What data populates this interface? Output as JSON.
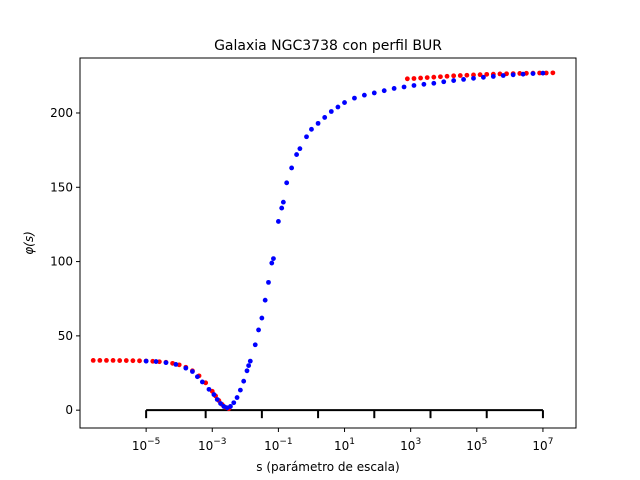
{
  "chart_data": {
    "type": "scatter",
    "title": "Galaxia NGC3738 con perfil BUR",
    "xlabel": "s (parámetro de escala)",
    "ylabel": "φ(s)",
    "xscale": "log",
    "xlim": [
      1e-07,
      100000000.0
    ],
    "ylim": [
      -12,
      237
    ],
    "x_ticks": [
      {
        "exp": -5,
        "label_base": "10",
        "label_exp": "−5"
      },
      {
        "exp": -3,
        "label_base": "10",
        "label_exp": "−3"
      },
      {
        "exp": -1,
        "label_base": "10",
        "label_exp": "−1"
      },
      {
        "exp": 1,
        "label_base": "10",
        "label_exp": "1"
      },
      {
        "exp": 3,
        "label_base": "10",
        "label_exp": "3"
      },
      {
        "exp": 5,
        "label_base": "10",
        "label_exp": "5"
      },
      {
        "exp": 7,
        "label_base": "10",
        "label_exp": "7"
      }
    ],
    "y_ticks": [
      {
        "value": 0,
        "label": "0"
      },
      {
        "value": 50,
        "label": "50"
      },
      {
        "value": 100,
        "label": "100"
      },
      {
        "value": 150,
        "label": "150"
      },
      {
        "value": 200,
        "label": "200"
      }
    ],
    "bracket": {
      "y": 0,
      "x_from_exp": -5,
      "x_to_exp": 7,
      "tick_exps": [
        -5,
        -3.2,
        -1.5,
        0.2,
        1.9,
        3.6,
        5.3,
        7
      ]
    },
    "grid": false,
    "legend": "none",
    "series": [
      {
        "color": "#ff0000",
        "points": [
          [
            -6.6,
            33.5
          ],
          [
            -6.4,
            33.5
          ],
          [
            -6.2,
            33.5
          ],
          [
            -6.0,
            33.5
          ],
          [
            -5.8,
            33.4
          ],
          [
            -5.6,
            33.4
          ],
          [
            -5.4,
            33.3
          ],
          [
            -5.2,
            33.2
          ],
          [
            -5.0,
            33.1
          ],
          [
            -4.8,
            32.9
          ],
          [
            -4.6,
            32.6
          ],
          [
            -4.4,
            32.2
          ],
          [
            -4.2,
            31.5
          ],
          [
            -4.0,
            30.5
          ],
          [
            -3.8,
            28.9
          ],
          [
            -3.6,
            26.5
          ],
          [
            -3.4,
            23.1
          ],
          [
            -3.2,
            18.4
          ],
          [
            -3.0,
            12.7
          ],
          [
            -2.9,
            9.6
          ],
          [
            -2.8,
            6.5
          ],
          [
            -2.7,
            3.8
          ],
          [
            -2.6,
            1.9
          ],
          [
            -2.5,
            1.0
          ],
          [
            2.9,
            223.0
          ],
          [
            3.1,
            223.2
          ],
          [
            3.3,
            223.5
          ],
          [
            3.5,
            223.8
          ],
          [
            3.7,
            224.1
          ],
          [
            3.9,
            224.4
          ],
          [
            4.1,
            224.7
          ],
          [
            4.3,
            225.0
          ],
          [
            4.5,
            225.2
          ],
          [
            4.7,
            225.4
          ],
          [
            4.9,
            225.6
          ],
          [
            5.1,
            225.8
          ],
          [
            5.3,
            226.0
          ],
          [
            5.5,
            226.1
          ],
          [
            5.7,
            226.3
          ],
          [
            5.9,
            226.4
          ],
          [
            6.1,
            226.5
          ],
          [
            6.3,
            226.6
          ],
          [
            6.5,
            226.7
          ],
          [
            6.7,
            226.8
          ],
          [
            6.9,
            226.9
          ],
          [
            7.1,
            226.9
          ],
          [
            7.3,
            227.0
          ]
        ]
      },
      {
        "color": "#0000ff",
        "points": [
          [
            -5.0,
            33.0
          ],
          [
            -4.7,
            32.7
          ],
          [
            -4.4,
            32.0
          ],
          [
            -4.1,
            30.8
          ],
          [
            -3.8,
            28.3
          ],
          [
            -3.6,
            26.0
          ],
          [
            -3.45,
            22.5
          ],
          [
            -3.3,
            19.0
          ],
          [
            -3.1,
            14.0
          ],
          [
            -2.95,
            10.5
          ],
          [
            -2.85,
            7.2
          ],
          [
            -2.75,
            4.5
          ],
          [
            -2.65,
            2.5
          ],
          [
            -2.55,
            1.6
          ],
          [
            -2.45,
            2.5
          ],
          [
            -2.35,
            5.0
          ],
          [
            -2.25,
            8.5
          ],
          [
            -2.15,
            13.5
          ],
          [
            -2.05,
            19.5
          ],
          [
            -1.95,
            26.5
          ],
          [
            -1.9,
            30.0
          ],
          [
            -1.85,
            33.0
          ],
          [
            -1.7,
            44.0
          ],
          [
            -1.6,
            54.0
          ],
          [
            -1.5,
            62.0
          ],
          [
            -1.4,
            74.0
          ],
          [
            -1.3,
            86.0
          ],
          [
            -1.2,
            99.0
          ],
          [
            -1.15,
            102.0
          ],
          [
            -1.0,
            127.0
          ],
          [
            -0.9,
            136.0
          ],
          [
            -0.85,
            140.0
          ],
          [
            -0.75,
            153.0
          ],
          [
            -0.6,
            163.0
          ],
          [
            -0.45,
            172.0
          ],
          [
            -0.35,
            176.0
          ],
          [
            -0.15,
            184.0
          ],
          [
            0.0,
            189.0
          ],
          [
            0.2,
            193.0
          ],
          [
            0.4,
            197.0
          ],
          [
            0.6,
            201.0
          ],
          [
            0.8,
            204.0
          ],
          [
            1.0,
            207.0
          ],
          [
            1.3,
            210.0
          ],
          [
            1.6,
            212.0
          ],
          [
            1.9,
            213.5
          ],
          [
            2.2,
            215.0
          ],
          [
            2.5,
            216.5
          ],
          [
            2.8,
            217.5
          ],
          [
            3.1,
            218.5
          ],
          [
            3.4,
            219.3
          ],
          [
            3.7,
            220.0
          ],
          [
            4.0,
            221.0
          ],
          [
            4.3,
            221.8
          ],
          [
            4.6,
            222.6
          ],
          [
            4.9,
            223.3
          ],
          [
            5.2,
            224.0
          ],
          [
            5.5,
            224.6
          ],
          [
            5.8,
            225.2
          ],
          [
            6.1,
            225.7
          ],
          [
            6.4,
            226.1
          ],
          [
            6.7,
            226.5
          ],
          [
            7.0,
            226.8
          ]
        ]
      }
    ]
  }
}
